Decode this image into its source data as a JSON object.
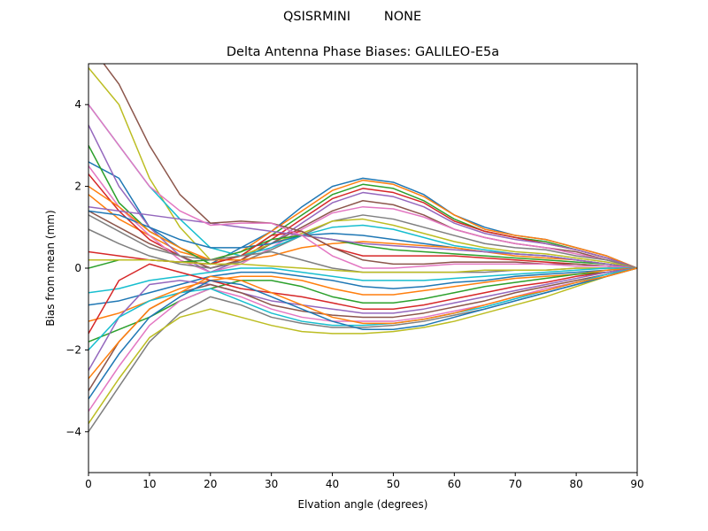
{
  "figure": {
    "suptitle_left": "QSISRMINI",
    "suptitle_right": "NONE"
  },
  "chart_data": {
    "type": "line",
    "title": "Delta Antenna Phase Biases: GALILEO-E5a",
    "xlabel": "Elvation angle (degrees)",
    "ylabel": "Bias from mean (mm)",
    "xlim": [
      0,
      90
    ],
    "ylim": [
      -5,
      5
    ],
    "xticks": [
      0,
      10,
      20,
      30,
      40,
      50,
      60,
      70,
      80,
      90
    ],
    "yticks": [
      -4,
      -2,
      0,
      2,
      4
    ],
    "ytick_labels": [
      "−4",
      "−2",
      "0",
      "2",
      "4"
    ],
    "grid": false,
    "legend": "none",
    "colors": [
      "#1f77b4",
      "#ff7f0e",
      "#2ca02c",
      "#d62728",
      "#9467bd",
      "#8c564b",
      "#e377c2",
      "#7f7f7f",
      "#bcbd22",
      "#17becf"
    ],
    "x": [
      0,
      5,
      10,
      15,
      20,
      25,
      30,
      35,
      40,
      45,
      50,
      55,
      60,
      65,
      70,
      75,
      80,
      85,
      90
    ],
    "series": [
      {
        "values": [
          2.6,
          2.2,
          1.0,
          0.5,
          0.1,
          0.5,
          0.9,
          1.5,
          2.0,
          2.2,
          2.1,
          1.8,
          1.3,
          1.0,
          0.8,
          0.7,
          0.5,
          0.3,
          0.0
        ]
      },
      {
        "values": [
          1.8,
          1.2,
          0.8,
          0.4,
          0.2,
          0.4,
          0.9,
          1.4,
          1.9,
          2.15,
          2.05,
          1.75,
          1.3,
          0.95,
          0.8,
          0.7,
          0.5,
          0.3,
          0.0
        ]
      },
      {
        "values": [
          3.0,
          1.6,
          0.9,
          0.5,
          0.1,
          0.3,
          0.8,
          1.3,
          1.8,
          2.05,
          1.95,
          1.65,
          1.2,
          0.9,
          0.75,
          0.65,
          0.45,
          0.25,
          0.0
        ]
      },
      {
        "values": [
          2.3,
          1.4,
          0.7,
          0.3,
          0.0,
          0.2,
          0.7,
          1.2,
          1.7,
          1.95,
          1.85,
          1.6,
          1.15,
          0.9,
          0.75,
          0.6,
          0.45,
          0.25,
          0.0
        ]
      },
      {
        "values": [
          3.5,
          2.0,
          1.0,
          0.3,
          -0.1,
          0.2,
          0.6,
          1.1,
          1.6,
          1.85,
          1.75,
          1.5,
          1.1,
          0.85,
          0.7,
          0.6,
          0.45,
          0.25,
          0.0
        ]
      },
      {
        "values": [
          1.4,
          1.0,
          0.6,
          0.3,
          0.0,
          0.2,
          0.6,
          1.0,
          1.4,
          1.65,
          1.55,
          1.3,
          0.95,
          0.75,
          0.6,
          0.5,
          0.4,
          0.2,
          0.0
        ]
      },
      {
        "values": [
          2.5,
          1.5,
          0.8,
          0.2,
          -0.1,
          0.1,
          0.5,
          0.95,
          1.35,
          1.5,
          1.45,
          1.25,
          0.95,
          0.75,
          0.6,
          0.5,
          0.35,
          0.2,
          0.0
        ]
      },
      {
        "values": [
          0.95,
          0.6,
          0.3,
          0.1,
          0.0,
          0.15,
          0.45,
          0.8,
          1.15,
          1.3,
          1.2,
          1.0,
          0.8,
          0.6,
          0.5,
          0.45,
          0.3,
          0.2,
          0.0
        ]
      },
      {
        "values": [
          4.9,
          4.0,
          2.2,
          1.0,
          0.2,
          0.3,
          0.6,
          0.85,
          1.15,
          1.2,
          1.05,
          0.85,
          0.65,
          0.5,
          0.4,
          0.35,
          0.25,
          0.15,
          0.0
        ]
      },
      {
        "values": [
          4.0,
          3.0,
          2.0,
          1.2,
          0.5,
          0.3,
          0.5,
          0.8,
          1.0,
          1.05,
          0.95,
          0.75,
          0.55,
          0.45,
          0.35,
          0.3,
          0.2,
          0.1,
          0.0
        ]
      },
      {
        "values": [
          1.4,
          1.3,
          1.0,
          0.7,
          0.5,
          0.5,
          0.6,
          0.8,
          0.85,
          0.8,
          0.7,
          0.6,
          0.5,
          0.4,
          0.35,
          0.3,
          0.2,
          0.1,
          0.0
        ]
      },
      {
        "values": [
          2.0,
          1.5,
          0.9,
          0.5,
          0.2,
          0.2,
          0.3,
          0.5,
          0.6,
          0.65,
          0.6,
          0.55,
          0.5,
          0.4,
          0.3,
          0.25,
          0.2,
          0.1,
          0.0
        ]
      },
      {
        "values": [
          0.0,
          0.2,
          0.2,
          0.15,
          0.2,
          0.4,
          0.7,
          0.8,
          0.7,
          0.55,
          0.45,
          0.4,
          0.35,
          0.3,
          0.25,
          0.2,
          0.15,
          0.1,
          0.0
        ]
      },
      {
        "values": [
          0.4,
          0.3,
          0.2,
          0.15,
          0.1,
          0.3,
          0.8,
          0.9,
          0.5,
          0.3,
          0.3,
          0.3,
          0.3,
          0.25,
          0.2,
          0.15,
          0.1,
          0.05,
          0.0
        ]
      },
      {
        "values": [
          1.5,
          1.4,
          1.3,
          1.2,
          1.1,
          1.0,
          0.9,
          0.8,
          0.7,
          0.6,
          0.55,
          0.5,
          0.45,
          0.4,
          0.35,
          0.3,
          0.2,
          0.1,
          0.0
        ]
      },
      {
        "values": [
          5.5,
          4.5,
          3.0,
          1.8,
          1.1,
          1.15,
          1.1,
          0.9,
          0.5,
          0.2,
          0.1,
          0.1,
          0.15,
          0.15,
          0.15,
          0.1,
          0.1,
          0.05,
          0.0
        ]
      },
      {
        "values": [
          4.0,
          3.0,
          2.0,
          1.4,
          1.05,
          1.1,
          1.1,
          0.8,
          0.3,
          0.0,
          0.0,
          0.05,
          0.1,
          0.1,
          0.1,
          0.1,
          0.05,
          0.05,
          0.0
        ]
      },
      {
        "values": [
          1.3,
          0.9,
          0.5,
          0.3,
          0.2,
          0.3,
          0.4,
          0.2,
          0.0,
          -0.1,
          -0.1,
          -0.1,
          -0.1,
          -0.1,
          -0.05,
          -0.05,
          0.0,
          0.0,
          0.0
        ]
      },
      {
        "values": [
          0.2,
          0.2,
          0.2,
          0.15,
          0.1,
          0.1,
          0.05,
          0.0,
          -0.05,
          -0.1,
          -0.1,
          -0.1,
          -0.1,
          -0.05,
          -0.05,
          -0.05,
          0.0,
          0.0,
          0.0
        ]
      },
      {
        "values": [
          -0.6,
          -0.5,
          -0.3,
          -0.2,
          -0.1,
          0.0,
          0.0,
          -0.1,
          -0.2,
          -0.3,
          -0.3,
          -0.3,
          -0.25,
          -0.2,
          -0.15,
          -0.1,
          -0.05,
          0.0,
          0.0
        ]
      },
      {
        "values": [
          -0.9,
          -0.8,
          -0.6,
          -0.4,
          -0.2,
          -0.1,
          -0.1,
          -0.2,
          -0.3,
          -0.45,
          -0.5,
          -0.45,
          -0.35,
          -0.3,
          -0.2,
          -0.15,
          -0.1,
          -0.05,
          0.0
        ]
      },
      {
        "values": [
          -1.3,
          -1.1,
          -0.8,
          -0.5,
          -0.3,
          -0.2,
          -0.2,
          -0.3,
          -0.5,
          -0.65,
          -0.65,
          -0.55,
          -0.45,
          -0.35,
          -0.25,
          -0.2,
          -0.15,
          -0.05,
          0.0
        ]
      },
      {
        "values": [
          -1.8,
          -1.5,
          -1.2,
          -0.8,
          -0.5,
          -0.3,
          -0.3,
          -0.45,
          -0.7,
          -0.85,
          -0.85,
          -0.75,
          -0.6,
          -0.45,
          -0.35,
          -0.25,
          -0.15,
          -0.1,
          0.0
        ]
      },
      {
        "values": [
          -1.6,
          -0.3,
          0.1,
          -0.1,
          -0.3,
          -0.5,
          -0.6,
          -0.7,
          -0.85,
          -1.0,
          -1.0,
          -0.9,
          -0.75,
          -0.6,
          -0.45,
          -0.35,
          -0.2,
          -0.1,
          0.0
        ]
      },
      {
        "values": [
          -2.5,
          -1.2,
          -0.4,
          -0.3,
          -0.4,
          -0.6,
          -0.8,
          -0.9,
          -1.0,
          -1.1,
          -1.1,
          -1.0,
          -0.85,
          -0.7,
          -0.55,
          -0.4,
          -0.25,
          -0.1,
          0.0
        ]
      },
      {
        "values": [
          -3.0,
          -1.8,
          -1.0,
          -0.6,
          -0.4,
          -0.6,
          -0.9,
          -1.05,
          -1.15,
          -1.2,
          -1.2,
          -1.1,
          -0.95,
          -0.8,
          -0.6,
          -0.45,
          -0.3,
          -0.15,
          0.0
        ]
      },
      {
        "values": [
          -3.5,
          -2.4,
          -1.4,
          -0.8,
          -0.5,
          -0.7,
          -1.0,
          -1.2,
          -1.3,
          -1.3,
          -1.3,
          -1.2,
          -1.05,
          -0.9,
          -0.7,
          -0.5,
          -0.35,
          -0.15,
          0.0
        ]
      },
      {
        "values": [
          -4.0,
          -2.9,
          -1.8,
          -1.1,
          -0.7,
          -0.9,
          -1.2,
          -1.35,
          -1.45,
          -1.45,
          -1.4,
          -1.3,
          -1.15,
          -1.0,
          -0.8,
          -0.6,
          -0.4,
          -0.2,
          0.0
        ]
      },
      {
        "values": [
          -3.8,
          -2.7,
          -1.7,
          -1.2,
          -1.0,
          -1.2,
          -1.4,
          -1.55,
          -1.6,
          -1.6,
          -1.55,
          -1.45,
          -1.3,
          -1.1,
          -0.9,
          -0.7,
          -0.45,
          -0.2,
          0.0
        ]
      },
      {
        "values": [
          -2.0,
          -1.2,
          -0.8,
          -0.6,
          -0.5,
          -0.8,
          -1.1,
          -1.3,
          -1.4,
          -1.4,
          -1.35,
          -1.25,
          -1.1,
          -0.95,
          -0.75,
          -0.55,
          -0.35,
          -0.15,
          0.0
        ]
      },
      {
        "values": [
          -3.2,
          -2.1,
          -1.2,
          -0.7,
          -0.3,
          -0.4,
          -0.7,
          -1.0,
          -1.3,
          -1.5,
          -1.5,
          -1.4,
          -1.2,
          -1.0,
          -0.8,
          -0.6,
          -0.4,
          -0.2,
          0.0
        ]
      },
      {
        "values": [
          -2.7,
          -1.8,
          -1.0,
          -0.6,
          -0.2,
          -0.3,
          -0.6,
          -0.9,
          -1.2,
          -1.35,
          -1.35,
          -1.25,
          -1.1,
          -0.9,
          -0.7,
          -0.55,
          -0.35,
          -0.2,
          0.0
        ]
      }
    ]
  }
}
